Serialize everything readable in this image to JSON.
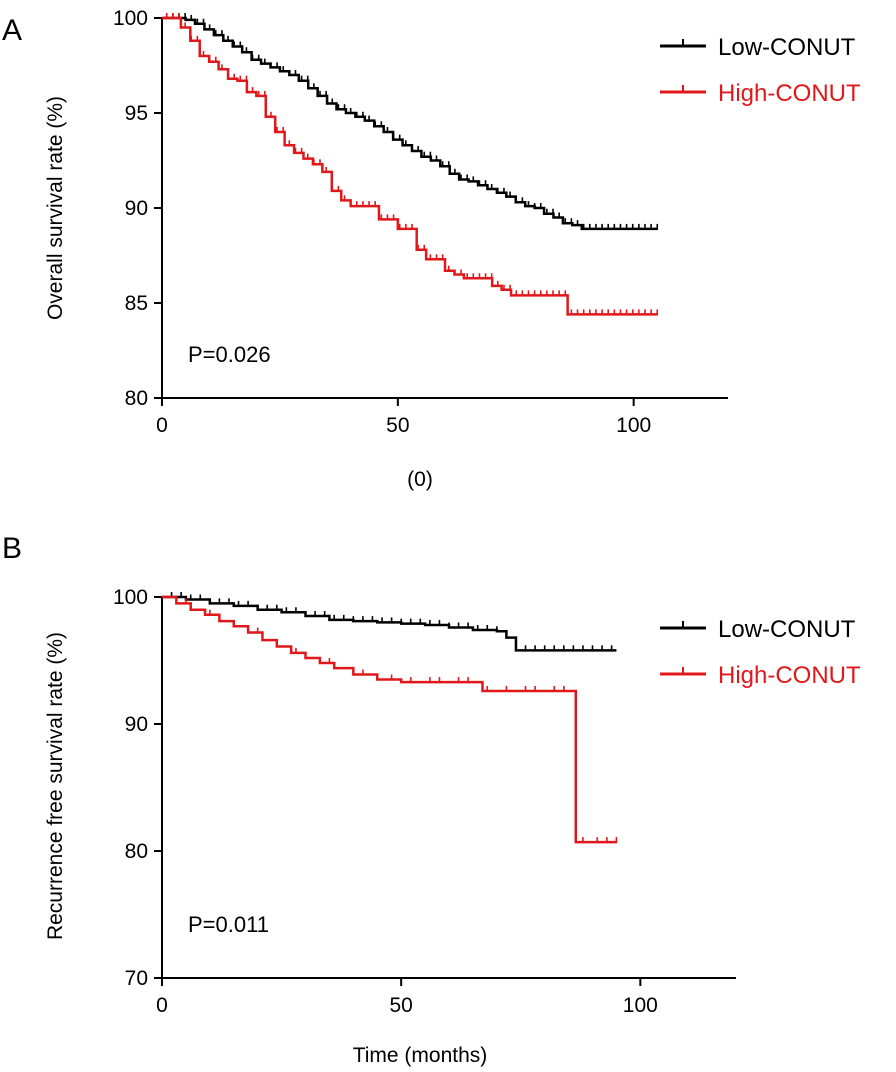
{
  "colors": {
    "low": "#000000",
    "high": "#e0181b",
    "axis": "#000000"
  },
  "chart_data": [
    {
      "panel": "A",
      "type": "line",
      "subtype": "kaplan-meier",
      "xlabel": "(0)",
      "ylabel": "Overall survival rate (%)",
      "xlim": [
        0,
        120
      ],
      "ylim": [
        80,
        100
      ],
      "xticks": [
        "0",
        "50",
        "100"
      ],
      "yticks": [
        "80",
        "85",
        "90",
        "95",
        "100"
      ],
      "annotation": "P=0.026",
      "legend_position": "top-right",
      "grid": false,
      "series": [
        {
          "name": "Low-CONUT",
          "color": "#000000",
          "x": [
            0,
            3,
            5,
            7,
            9,
            11,
            13,
            15,
            17,
            19,
            21,
            23,
            25,
            27,
            29,
            31,
            33,
            35,
            37,
            39,
            41,
            43,
            45,
            47,
            49,
            51,
            53,
            55,
            57,
            59,
            61,
            63,
            65,
            67,
            69,
            71,
            73,
            75,
            77,
            79,
            81,
            83,
            85,
            87,
            89,
            91,
            93,
            95,
            97,
            99,
            101,
            103,
            105
          ],
          "y": [
            100,
            100,
            99.9,
            99.7,
            99.4,
            99.1,
            98.8,
            98.5,
            98.2,
            97.8,
            97.6,
            97.4,
            97.2,
            97.0,
            96.7,
            96.3,
            95.9,
            95.5,
            95.2,
            95.0,
            94.8,
            94.6,
            94.3,
            94.0,
            93.6,
            93.3,
            93.0,
            92.7,
            92.5,
            92.2,
            91.8,
            91.5,
            91.4,
            91.2,
            91.0,
            90.8,
            90.6,
            90.3,
            90.1,
            90.0,
            89.7,
            89.5,
            89.2,
            89.1,
            88.9,
            88.9,
            88.9,
            88.9,
            88.9,
            88.9,
            88.9,
            88.9,
            88.9
          ]
        },
        {
          "name": "High-CONUT",
          "color": "#e0181b",
          "x": [
            0,
            4,
            6,
            8,
            10,
            12,
            14,
            16,
            18,
            20,
            22,
            24,
            26,
            28,
            30,
            32,
            34,
            36,
            38,
            40,
            44,
            46,
            50,
            54,
            56,
            60,
            62,
            64,
            68,
            70,
            72,
            74,
            78,
            80,
            84,
            86,
            90,
            95,
            100,
            105
          ],
          "y": [
            100,
            99.5,
            98.8,
            98.0,
            97.7,
            97.3,
            96.8,
            96.7,
            96.1,
            95.9,
            94.8,
            94.0,
            93.3,
            92.9,
            92.6,
            92.3,
            91.9,
            90.9,
            90.4,
            90.1,
            90.1,
            89.4,
            88.9,
            87.8,
            87.3,
            86.7,
            86.5,
            86.3,
            86.3,
            85.9,
            85.7,
            85.4,
            85.4,
            85.4,
            85.4,
            84.4,
            84.4,
            84.4,
            84.4,
            84.4
          ]
        }
      ]
    },
    {
      "panel": "B",
      "type": "line",
      "subtype": "kaplan-meier",
      "xlabel": "Time (months)",
      "ylabel": "Recurrence free survival rate (%)",
      "xlim": [
        0,
        120
      ],
      "ylim": [
        70,
        100
      ],
      "xticks": [
        "0",
        "50",
        "100"
      ],
      "yticks": [
        "70",
        "80",
        "90",
        "100"
      ],
      "annotation": "P=0.011",
      "legend_position": "top-right",
      "grid": false,
      "series": [
        {
          "name": "Low-CONUT",
          "color": "#000000",
          "x": [
            0,
            5,
            10,
            15,
            20,
            25,
            30,
            35,
            40,
            45,
            50,
            55,
            60,
            65,
            70,
            72,
            74,
            80,
            85,
            90,
            95
          ],
          "y": [
            100,
            99.8,
            99.5,
            99.3,
            99.0,
            98.8,
            98.5,
            98.2,
            98.1,
            98.0,
            97.9,
            97.8,
            97.6,
            97.4,
            97.3,
            96.8,
            95.8,
            95.8,
            95.8,
            95.8,
            95.8
          ],
          "censors": [
            2,
            4,
            6,
            8,
            10,
            12,
            14,
            16,
            18,
            20,
            22,
            24,
            26,
            28,
            30,
            32,
            34,
            36,
            38,
            40,
            42,
            44,
            46,
            48,
            50,
            52,
            54,
            56,
            58,
            60,
            62,
            64,
            66,
            68,
            70,
            76,
            78,
            80,
            82,
            84,
            86,
            88,
            90,
            92,
            94
          ]
        },
        {
          "name": "High-CONUT",
          "color": "#e0181b",
          "x": [
            0,
            3,
            6,
            9,
            12,
            15,
            18,
            21,
            24,
            27,
            30,
            33,
            36,
            40,
            45,
            50,
            55,
            60,
            65,
            67,
            70,
            75,
            80,
            86,
            86.5,
            90,
            95
          ],
          "y": [
            100,
            99.5,
            99.0,
            98.6,
            98.1,
            97.7,
            97.2,
            96.6,
            96.1,
            95.6,
            95.2,
            94.8,
            94.4,
            93.9,
            93.5,
            93.3,
            93.3,
            93.3,
            93.3,
            92.6,
            92.6,
            92.6,
            92.6,
            92.6,
            80.7,
            80.7,
            80.7
          ],
          "censors": [
            5,
            10,
            20,
            28,
            35,
            42,
            48,
            52,
            56,
            58,
            62,
            64,
            68,
            72,
            76,
            78,
            82,
            84,
            88,
            91,
            93,
            95
          ]
        }
      ]
    }
  ]
}
